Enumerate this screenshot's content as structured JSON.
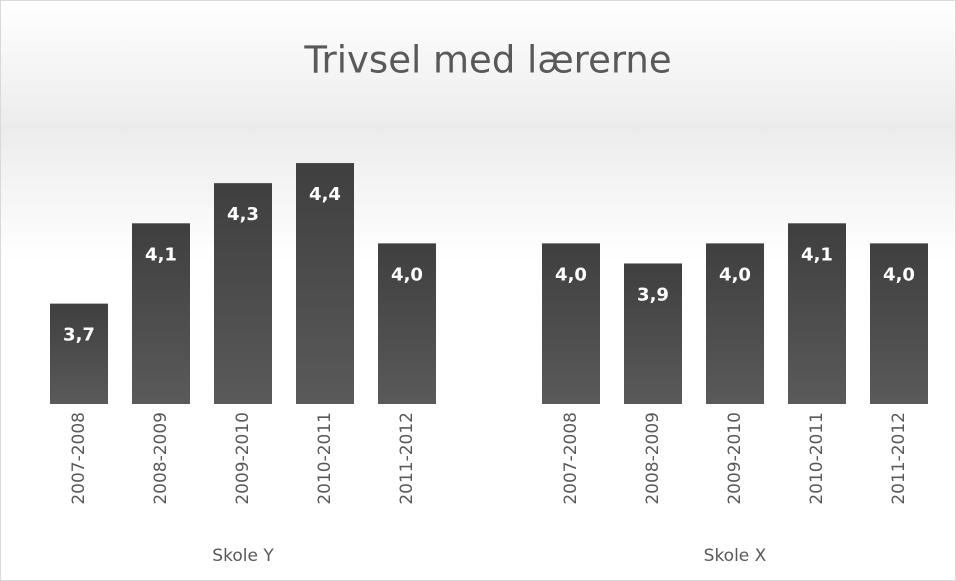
{
  "chart_data": {
    "type": "bar",
    "title": "Trivsel med lærerne",
    "groups": [
      {
        "name": "Skole Y",
        "categories": [
          "2007-2008",
          "2008-2009",
          "2009-2010",
          "2010-2011",
          "2011-2012"
        ],
        "values": [
          3.7,
          4.1,
          4.3,
          4.4,
          4.0
        ],
        "value_labels": [
          "3,7",
          "4,1",
          "4,3",
          "4,4",
          "4,0"
        ]
      },
      {
        "name": "Skole X",
        "categories": [
          "2007-2008",
          "2008-2009",
          "2009-2010",
          "2010-2011",
          "2011-2012"
        ],
        "values": [
          4.0,
          3.9,
          4.0,
          4.1,
          4.0
        ],
        "value_labels": [
          "4,0",
          "3,9",
          "4,0",
          "4,1",
          "4,0"
        ]
      }
    ],
    "color": "#4d4d4d",
    "ylim": [
      3.2,
      4.5
    ]
  }
}
